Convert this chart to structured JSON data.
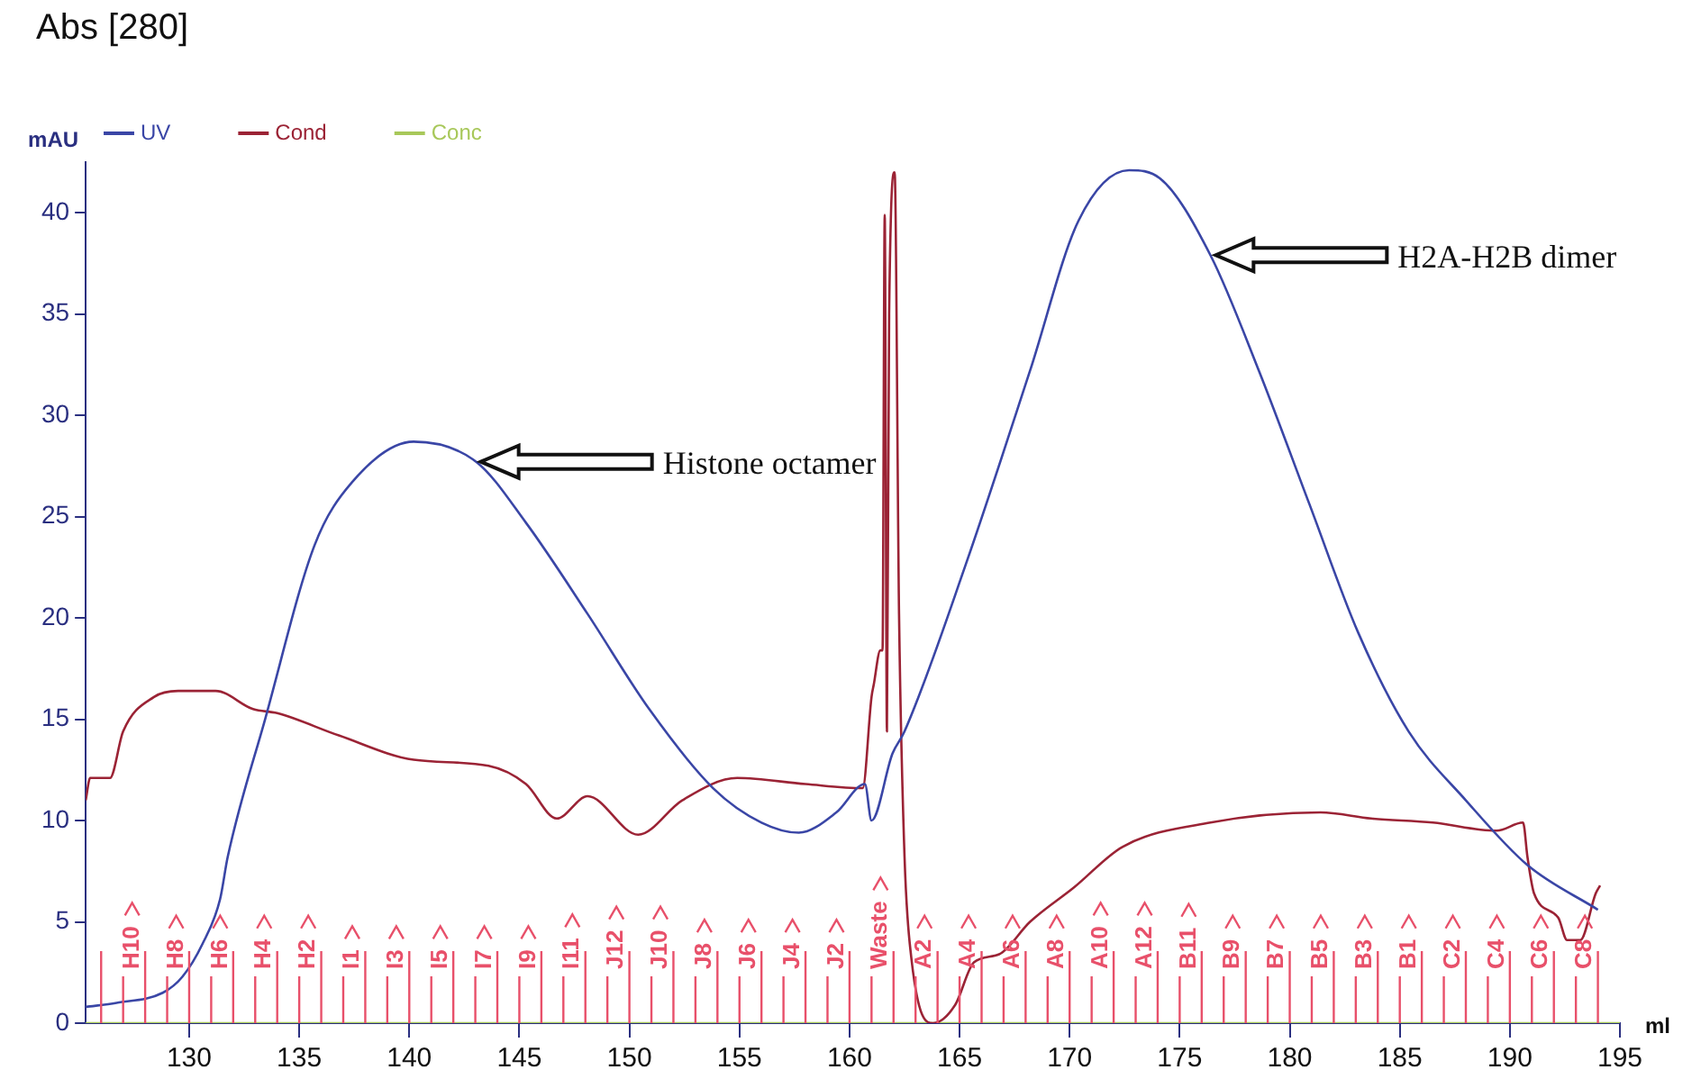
{
  "chart_data": {
    "type": "line",
    "title": "Abs [280]",
    "ylabel": "mAU",
    "xlabel": "ml",
    "xlim": [
      125.3,
      195
    ],
    "xticks": [
      130,
      135,
      140,
      145,
      150,
      155,
      160,
      165,
      170,
      175,
      180,
      185,
      190,
      195
    ],
    "ylim": [
      0,
      42.5
    ],
    "yticks": [
      0,
      5,
      10,
      15,
      20,
      25,
      30,
      35,
      40
    ],
    "legend": "top left",
    "grid": false,
    "marker": "none",
    "line_style": "solid",
    "series": [
      {
        "name": "UV",
        "color": "#3a46a6",
        "x": [
          125.3,
          126.7,
          128.8,
          129.7,
          130.6,
          131.4,
          131.75,
          133.45,
          135.7,
          137.4,
          140.2,
          143.05,
          145.3,
          148.1,
          150.9,
          153.8,
          156.0,
          157.7,
          159.4,
          160.7,
          161.0,
          161.95,
          162.5,
          165.3,
          168.2,
          170.4,
          172.7,
          174.1,
          176.4,
          178.6,
          180.9,
          183.1,
          185.4,
          188.0,
          190.8,
          194.0
        ],
        "values": [
          0.8,
          1.0,
          1.5,
          2.3,
          3.9,
          6.1,
          8.2,
          15.0,
          23.6,
          26.7,
          28.7,
          27.7,
          24.7,
          20.2,
          15.5,
          11.6,
          9.9,
          9.4,
          10.4,
          11.8,
          10.0,
          13.3,
          14.4,
          22.7,
          32.2,
          39.6,
          42.1,
          41.7,
          37.9,
          32.2,
          25.6,
          19.3,
          14.4,
          11.0,
          7.8,
          5.6
        ]
      },
      {
        "name": "Cond",
        "color": "#9b2335",
        "x": [
          125.3,
          125.5,
          126.4,
          127.0,
          128.4,
          129.5,
          131.2,
          132.9,
          134.0,
          136.8,
          140.2,
          143.6,
          145.3,
          146.7,
          148.1,
          150.4,
          152.4,
          154.9,
          158.0,
          160.6,
          161.0,
          161.1,
          161.4,
          161.5,
          161.6,
          161.7,
          161.8,
          162.05,
          162.25,
          162.5,
          162.8,
          163.8,
          164.8,
          165.65,
          166.8,
          168.2,
          170.2,
          172.4,
          176.4,
          181.4,
          183.7,
          186.5,
          189.4,
          190.6,
          190.8,
          191.1,
          192.2,
          192.6,
          193.2,
          193.9,
          194.1
        ],
        "values": [
          11.0,
          12.1,
          12.1,
          14.4,
          16.1,
          16.4,
          16.4,
          15.5,
          15.3,
          14.2,
          13.0,
          12.7,
          11.8,
          10.1,
          11.2,
          9.3,
          11.0,
          12.1,
          11.8,
          11.6,
          16.1,
          16.7,
          18.4,
          18.4,
          39.9,
          14.4,
          35.0,
          42.0,
          20.2,
          8.2,
          3.3,
          0,
          0.9,
          3.0,
          3.4,
          5.0,
          6.7,
          8.7,
          9.9,
          10.4,
          10.1,
          9.9,
          9.5,
          9.9,
          8.2,
          6.4,
          5.2,
          4.1,
          4.1,
          6.4,
          6.8
        ]
      },
      {
        "name": "Conc",
        "color": "#a8c85a",
        "x": [
          125.3,
          195
        ],
        "values": [
          0,
          0
        ]
      }
    ],
    "annotations": [
      "Histone octamer",
      "H2A-H2B dimer"
    ],
    "ref_lines": [
      {
        "axis": "x",
        "value": 126,
        "label": null,
        "color": "#e8506a"
      },
      {
        "axis": "x",
        "value": 127,
        "label": "H10",
        "color": "#e8506a"
      },
      {
        "axis": "x",
        "value": 128,
        "label": null,
        "color": "#e8506a"
      },
      {
        "axis": "x",
        "value": 129,
        "label": "H8",
        "color": "#e8506a"
      },
      {
        "axis": "x",
        "value": 130,
        "label": null,
        "color": "#e8506a"
      },
      {
        "axis": "x",
        "value": 131,
        "label": "H6",
        "color": "#e8506a"
      },
      {
        "axis": "x",
        "value": 132,
        "label": null,
        "color": "#e8506a"
      },
      {
        "axis": "x",
        "value": 133,
        "label": "H4",
        "color": "#e8506a"
      },
      {
        "axis": "x",
        "value": 134,
        "label": null,
        "color": "#e8506a"
      },
      {
        "axis": "x",
        "value": 135,
        "label": "H2",
        "color": "#e8506a"
      },
      {
        "axis": "x",
        "value": 136,
        "label": null,
        "color": "#e8506a"
      },
      {
        "axis": "x",
        "value": 137,
        "label": "I1",
        "color": "#e8506a"
      },
      {
        "axis": "x",
        "value": 138,
        "label": null,
        "color": "#e8506a"
      },
      {
        "axis": "x",
        "value": 139,
        "label": "I3",
        "color": "#e8506a"
      },
      {
        "axis": "x",
        "value": 140,
        "label": null,
        "color": "#e8506a"
      },
      {
        "axis": "x",
        "value": 141,
        "label": "I5",
        "color": "#e8506a"
      },
      {
        "axis": "x",
        "value": 142,
        "label": null,
        "color": "#e8506a"
      },
      {
        "axis": "x",
        "value": 143,
        "label": "I7",
        "color": "#e8506a"
      },
      {
        "axis": "x",
        "value": 144,
        "label": null,
        "color": "#e8506a"
      },
      {
        "axis": "x",
        "value": 145,
        "label": "I9",
        "color": "#e8506a"
      },
      {
        "axis": "x",
        "value": 146,
        "label": null,
        "color": "#e8506a"
      },
      {
        "axis": "x",
        "value": 147,
        "label": "I11",
        "color": "#e8506a"
      },
      {
        "axis": "x",
        "value": 148,
        "label": null,
        "color": "#e8506a"
      },
      {
        "axis": "x",
        "value": 149,
        "label": "J12",
        "color": "#e8506a"
      },
      {
        "axis": "x",
        "value": 150,
        "label": null,
        "color": "#e8506a"
      },
      {
        "axis": "x",
        "value": 151,
        "label": "J10",
        "color": "#e8506a"
      },
      {
        "axis": "x",
        "value": 152,
        "label": null,
        "color": "#e8506a"
      },
      {
        "axis": "x",
        "value": 153,
        "label": "J8",
        "color": "#e8506a"
      },
      {
        "axis": "x",
        "value": 154,
        "label": null,
        "color": "#e8506a"
      },
      {
        "axis": "x",
        "value": 155,
        "label": "J6",
        "color": "#e8506a"
      },
      {
        "axis": "x",
        "value": 156,
        "label": null,
        "color": "#e8506a"
      },
      {
        "axis": "x",
        "value": 157,
        "label": "J4",
        "color": "#e8506a"
      },
      {
        "axis": "x",
        "value": 158,
        "label": null,
        "color": "#e8506a"
      },
      {
        "axis": "x",
        "value": 159,
        "label": "J2",
        "color": "#e8506a"
      },
      {
        "axis": "x",
        "value": 160,
        "label": null,
        "color": "#e8506a"
      },
      {
        "axis": "x",
        "value": 161,
        "label": "Waste",
        "color": "#e8506a"
      },
      {
        "axis": "x",
        "value": 162,
        "label": null,
        "color": "#e8506a"
      },
      {
        "axis": "x",
        "value": 163,
        "label": "A2",
        "color": "#e8506a"
      },
      {
        "axis": "x",
        "value": 164,
        "label": null,
        "color": "#e8506a"
      },
      {
        "axis": "x",
        "value": 165,
        "label": "A4",
        "color": "#e8506a"
      },
      {
        "axis": "x",
        "value": 166,
        "label": null,
        "color": "#e8506a"
      },
      {
        "axis": "x",
        "value": 167,
        "label": "A6",
        "color": "#e8506a"
      },
      {
        "axis": "x",
        "value": 168,
        "label": null,
        "color": "#e8506a"
      },
      {
        "axis": "x",
        "value": 169,
        "label": "A8",
        "color": "#e8506a"
      },
      {
        "axis": "x",
        "value": 170,
        "label": null,
        "color": "#e8506a"
      },
      {
        "axis": "x",
        "value": 171,
        "label": "A10",
        "color": "#e8506a"
      },
      {
        "axis": "x",
        "value": 172,
        "label": null,
        "color": "#e8506a"
      },
      {
        "axis": "x",
        "value": 173,
        "label": "A12",
        "color": "#e8506a"
      },
      {
        "axis": "x",
        "value": 174,
        "label": null,
        "color": "#e8506a"
      },
      {
        "axis": "x",
        "value": 175,
        "label": "B11",
        "color": "#e8506a"
      },
      {
        "axis": "x",
        "value": 176,
        "label": null,
        "color": "#e8506a"
      },
      {
        "axis": "x",
        "value": 177,
        "label": "B9",
        "color": "#e8506a"
      },
      {
        "axis": "x",
        "value": 178,
        "label": null,
        "color": "#e8506a"
      },
      {
        "axis": "x",
        "value": 179,
        "label": "B7",
        "color": "#e8506a"
      },
      {
        "axis": "x",
        "value": 180,
        "label": null,
        "color": "#e8506a"
      },
      {
        "axis": "x",
        "value": 181,
        "label": "B5",
        "color": "#e8506a"
      },
      {
        "axis": "x",
        "value": 182,
        "label": null,
        "color": "#e8506a"
      },
      {
        "axis": "x",
        "value": 183,
        "label": "B3",
        "color": "#e8506a"
      },
      {
        "axis": "x",
        "value": 184,
        "label": null,
        "color": "#e8506a"
      },
      {
        "axis": "x",
        "value": 185,
        "label": "B1",
        "color": "#e8506a"
      },
      {
        "axis": "x",
        "value": 186,
        "label": null,
        "color": "#e8506a"
      },
      {
        "axis": "x",
        "value": 187,
        "label": "C2",
        "color": "#e8506a"
      },
      {
        "axis": "x",
        "value": 188,
        "label": null,
        "color": "#e8506a"
      },
      {
        "axis": "x",
        "value": 189,
        "label": "C4",
        "color": "#e8506a"
      },
      {
        "axis": "x",
        "value": 190,
        "label": null,
        "color": "#e8506a"
      },
      {
        "axis": "x",
        "value": 191,
        "label": "C6",
        "color": "#e8506a"
      },
      {
        "axis": "x",
        "value": 192,
        "label": null,
        "color": "#e8506a"
      },
      {
        "axis": "x",
        "value": 193,
        "label": "C8",
        "color": "#e8506a"
      },
      {
        "axis": "x",
        "value": 194,
        "label": null,
        "color": "#e8506a"
      }
    ]
  }
}
